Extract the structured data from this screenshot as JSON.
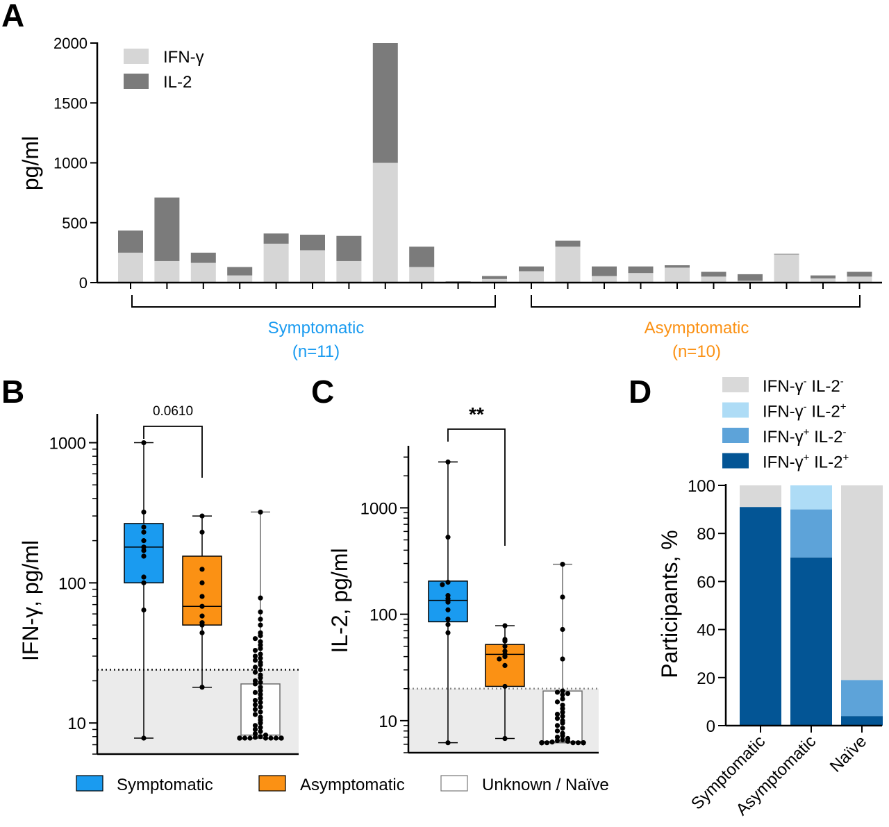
{
  "colors": {
    "ifng": "#d6d6d6",
    "il2": "#7b7b7b",
    "symptomatic": "#1a9bf0",
    "asymptomatic": "#fb9114",
    "naive_box": "#ffffff",
    "shade": "#ebebeb",
    "neg": "#d9d9d9",
    "il2_only": "#aedcf6",
    "ifng_only": "#5da3d9",
    "both": "#035595"
  },
  "chart_data": [
    {
      "panel": "A",
      "type": "bar",
      "stacked": true,
      "ylabel": "pg/ml",
      "ylim": [
        0,
        2000
      ],
      "yticks": [
        "0",
        "500",
        "1000",
        "1500",
        "2000"
      ],
      "series": [
        {
          "name": "IFN-γ",
          "values": [
            250,
            180,
            165,
            60,
            325,
            270,
            180,
            1000,
            130,
            5,
            30,
            95,
            300,
            55,
            80,
            125,
            50,
            15,
            235,
            35,
            50
          ]
        },
        {
          "name": "IL-2",
          "values": [
            185,
            530,
            85,
            70,
            85,
            130,
            210,
            1000,
            170,
            5,
            25,
            40,
            50,
            80,
            55,
            20,
            40,
            55,
            5,
            25,
            40
          ]
        }
      ],
      "groups": [
        {
          "label": "Symptomatic",
          "n": "(n=11)",
          "from": 0,
          "to": 10
        },
        {
          "label": "Asymptomatic",
          "n": "(n=10)",
          "from": 11,
          "to": 20
        }
      ]
    },
    {
      "panel": "B",
      "type": "box",
      "ylabel": "IFN-γ, pg/ml",
      "yscale": "log",
      "ylim": [
        6,
        1500
      ],
      "yticks": [
        "10",
        "100",
        "1000"
      ],
      "threshold": 24,
      "significance": "0.0610",
      "groups": [
        {
          "name": "Symptomatic",
          "min": 7.8,
          "q1": 100,
          "median": 180,
          "q3": 265,
          "max": 1000,
          "points": [
            1000,
            320,
            250,
            230,
            200,
            180,
            170,
            155,
            110,
            100,
            64,
            7.8
          ]
        },
        {
          "name": "Asymptomatic",
          "min": 18,
          "q1": 50,
          "median": 68,
          "q3": 155,
          "max": 300,
          "points": [
            300,
            230,
            125,
            100,
            80,
            68,
            58,
            52,
            50,
            44,
            18
          ]
        },
        {
          "name": "Unknown / Naïve",
          "min": 7.8,
          "q1": 7.8,
          "median": 8.2,
          "q3": 19,
          "max": 320,
          "points": [
            320,
            78,
            62,
            55,
            50,
            44,
            42,
            40,
            38,
            36,
            34,
            33,
            31,
            30,
            29,
            28,
            27,
            26,
            25,
            24,
            23,
            22,
            21,
            20,
            19.5,
            19,
            18,
            17,
            16.5,
            16,
            15,
            14.5,
            14,
            13.5,
            13,
            12.5,
            12,
            11.5,
            11,
            10.5,
            10,
            9.6,
            9.3,
            9,
            8.7,
            8.4,
            8.2,
            8,
            7.9,
            7.8,
            7.8,
            7.8,
            7.8,
            7.8,
            7.8,
            7.8,
            7.8,
            7.8,
            7.8,
            7.8,
            7.8,
            7.8,
            7.8,
            7.8,
            7.8
          ]
        }
      ]
    },
    {
      "panel": "C",
      "type": "box",
      "ylabel": "IL-2, pg/ml",
      "yscale": "log",
      "ylim": [
        5,
        3500
      ],
      "yticks": [
        "10",
        "100",
        "1000"
      ],
      "threshold": 20,
      "significance": "**",
      "groups": [
        {
          "name": "Symptomatic",
          "min": 6.2,
          "q1": 85,
          "median": 135,
          "q3": 205,
          "max": 2700,
          "points": [
            2700,
            530,
            200,
            190,
            150,
            140,
            130,
            110,
            90,
            80,
            67,
            6.2
          ]
        },
        {
          "name": "Asymptomatic",
          "min": 6.8,
          "q1": 21,
          "median": 42,
          "q3": 52,
          "max": 78,
          "points": [
            78,
            58,
            56,
            50,
            45,
            42,
            40,
            38,
            33,
            21,
            6.8
          ]
        },
        {
          "name": "Unknown / Naïve",
          "min": 6.2,
          "q1": 6.2,
          "median": 6.4,
          "q3": 19,
          "max": 295,
          "points": [
            295,
            145,
            72,
            38,
            19,
            18.5,
            18,
            17.5,
            16,
            15,
            14,
            13,
            12,
            11.5,
            11,
            10.5,
            10,
            9.5,
            9,
            8.5,
            8,
            7.6,
            7.2,
            7,
            6.8,
            6.6,
            6.5,
            6.4,
            6.3,
            6.2,
            6.2,
            6.2,
            6.2,
            6.2,
            6.2,
            6.2,
            6.2,
            6.2,
            6.2,
            6.2,
            6.2,
            6.2,
            6.2,
            6.2,
            6.2
          ]
        }
      ]
    },
    {
      "panel": "D",
      "type": "bar",
      "stacked": true,
      "ylabel": "Participants, %",
      "ylim": [
        0,
        100
      ],
      "yticks": [
        "0",
        "20",
        "40",
        "60",
        "80",
        "100"
      ],
      "categories": [
        "Symptomatic",
        "Asymptomatic",
        "Naïve"
      ],
      "series": [
        {
          "name": "IFN-γ⁺ IL-2⁺",
          "values": [
            91,
            70,
            4
          ]
        },
        {
          "name": "IFN-γ⁺ IL-2⁻",
          "values": [
            0,
            20,
            15
          ]
        },
        {
          "name": "IFN-γ⁻ IL-2⁺",
          "values": [
            0,
            10,
            0
          ]
        },
        {
          "name": "IFN-γ⁻ IL-2⁻",
          "values": [
            9,
            0,
            81
          ]
        }
      ]
    }
  ],
  "legend_bc": [
    "Symptomatic",
    "Asymptomatic",
    "Unknown / Naïve"
  ],
  "legend_d": [
    {
      "pre": "IFN-γ",
      "s1": "-",
      "mid": " IL-2",
      "s2": "-"
    },
    {
      "pre": "IFN-γ",
      "s1": "-",
      "mid": " IL-2",
      "s2": "+"
    },
    {
      "pre": "IFN-γ",
      "s1": "+",
      "mid": " IL-2",
      "s2": "-"
    },
    {
      "pre": "IFN-γ",
      "s1": "+",
      "mid": " IL-2",
      "s2": "+"
    }
  ]
}
